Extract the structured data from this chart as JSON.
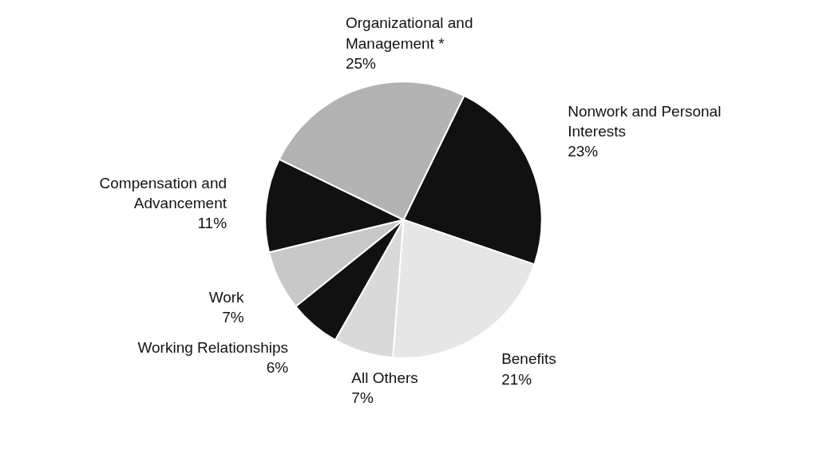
{
  "chart_data": {
    "type": "pie",
    "categories": [
      "Nonwork and Personal Interests",
      "Benefits",
      "All Others",
      "Working Relationships",
      "Work",
      "Compensation and Advancement",
      "Organizational and Management *"
    ],
    "values": [
      23,
      21,
      7,
      6,
      7,
      11,
      25
    ],
    "value_labels": [
      "23%",
      "21%",
      "7%",
      "6%",
      "7%",
      "11%",
      "25%"
    ],
    "colors": [
      "#111111",
      "#e6e6e6",
      "#d9d9d9",
      "#111111",
      "#c8c8c8",
      "#111111",
      "#b3b3b3"
    ]
  }
}
